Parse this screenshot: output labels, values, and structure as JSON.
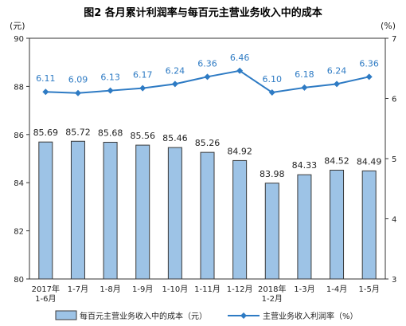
{
  "chart_data": {
    "type": "bar+line",
    "title": "图2  各月累计利润率与每百元主营业务收入中的成本",
    "left_unit": "(元)",
    "right_unit": "(%)",
    "categories": [
      "2017年\n1-6月",
      "1-7月",
      "1-8月",
      "1-9月",
      "1-10月",
      "1-11月",
      "1-12月",
      "2018年\n1-2月",
      "1-3月",
      "1-4月",
      "1-5月"
    ],
    "left_axis": {
      "ylim": [
        80,
        90
      ],
      "ticks": [
        80,
        82,
        84,
        86,
        88,
        90
      ]
    },
    "right_axis": {
      "ylim": [
        3,
        7
      ],
      "ticks": [
        3,
        4,
        5,
        6,
        7
      ]
    },
    "series": [
      {
        "name": "每百元主营业务收入中的成本（元）",
        "type": "bar",
        "axis": "left",
        "color": "#9dc3e6",
        "values": [
          85.69,
          85.72,
          85.68,
          85.56,
          85.46,
          85.26,
          84.92,
          83.98,
          84.33,
          84.52,
          84.49
        ],
        "labels": [
          "85.69",
          "85.72",
          "85.68",
          "85.56",
          "85.46",
          "85.26",
          "84.92",
          "83.98",
          "84.33",
          "84.52",
          "84.49"
        ]
      },
      {
        "name": "主营业务收入利润率（%）",
        "type": "line",
        "axis": "right",
        "color": "#2e7bc4",
        "values": [
          6.11,
          6.09,
          6.13,
          6.17,
          6.24,
          6.36,
          6.46,
          6.1,
          6.18,
          6.24,
          6.36
        ],
        "labels": [
          "6.11",
          "6.09",
          "6.13",
          "6.17",
          "6.24",
          "6.36",
          "6.46",
          "6.10",
          "6.18",
          "6.24",
          "6.36"
        ]
      }
    ],
    "legend_position": "bottom",
    "grid": false
  }
}
